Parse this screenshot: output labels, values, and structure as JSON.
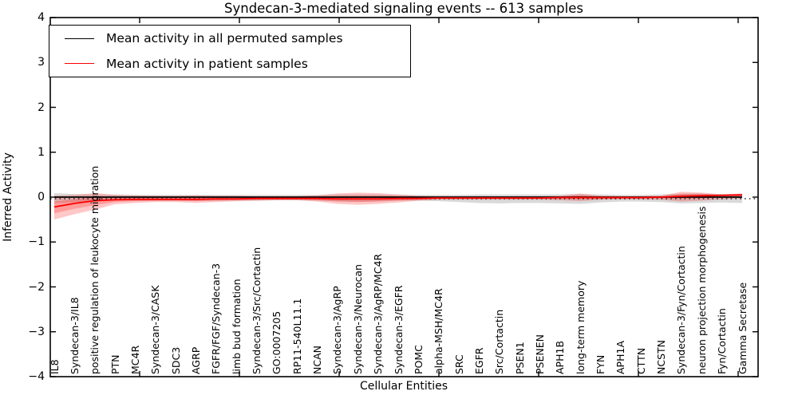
{
  "chart": {
    "title": "Syndecan-3-mediated signaling events -- 613 samples",
    "legend": [
      {
        "label": "Mean activity in all permuted samples",
        "color": "#000000"
      },
      {
        "label": "Mean activity in patient samples",
        "color": "#ff0000"
      }
    ]
  },
  "chart_data": {
    "type": "line",
    "title": "Syndecan-3-mediated signaling events -- 613 samples",
    "xlabel": "Cellular Entities",
    "ylabel": "Inferred Activity",
    "ylim": [
      -4,
      4
    ],
    "yticks": [
      4,
      3,
      2,
      1,
      0,
      -1,
      -2,
      -3,
      -4
    ],
    "ytick_labels": [
      "4",
      "3",
      "2",
      "1",
      "0",
      "−1",
      "−2",
      "−3",
      "−4"
    ],
    "grid": false,
    "legend_position": "upper left",
    "zero_line": 0,
    "categories": [
      "IL8",
      "Syndecan-3/IL8",
      "positive regulation of leukocyte migration",
      "PTN",
      "MC4R",
      "Syndecan-3/CASK",
      "SDC3",
      "AGRP",
      "FGFR/FGF/Syndecan-3",
      "limb bud formation",
      "Syndecan-3/Src/Cortactin",
      "GO:0007205",
      "RP11-540L11.1",
      "NCAN",
      "Syndecan-3/AgRP",
      "Syndecan-3/Neurocan",
      "Syndecan-3/AgRP/MC4R",
      "Syndecan-3/EGFR",
      "POMC",
      "alpha-MSH/MC4R",
      "SRC",
      "EGFR",
      "Src/Cortactin",
      "PSEN1",
      "PSENEN",
      "APH1B",
      "long-term memory",
      "FYN",
      "APH1A",
      "CTTN",
      "NCSTN",
      "Syndecan-3/Fyn/Cortactin",
      "neuron projection morphogenesis",
      "Fyn/Cortactin",
      "Gamma Secretase"
    ],
    "series": [
      {
        "name": "Mean activity in all permuted samples",
        "color": "#000000",
        "band_color": "rgba(0,0,0,0.15)",
        "values": [
          0,
          0,
          0,
          0,
          0,
          0,
          0,
          0,
          0,
          0,
          0,
          0,
          0,
          0,
          0,
          0,
          0,
          0,
          0,
          0,
          0,
          0,
          0,
          0,
          0,
          0,
          0,
          0,
          0,
          0,
          0,
          0,
          0,
          0,
          0
        ],
        "band_upper": [
          0.09,
          0.07,
          0.06,
          0.06,
          0.05,
          0.05,
          0.05,
          0.05,
          0.05,
          0.05,
          0.05,
          0.05,
          0.05,
          0.05,
          0.06,
          0.06,
          0.06,
          0.05,
          0.05,
          0.05,
          0.05,
          0.06,
          0.06,
          0.06,
          0.06,
          0.06,
          0.07,
          0.06,
          0.05,
          0.05,
          0.06,
          0.08,
          0.08,
          0.07,
          0.07
        ],
        "band_lower": [
          -0.13,
          -0.11,
          -0.09,
          -0.08,
          -0.08,
          -0.08,
          -0.08,
          -0.08,
          -0.08,
          -0.08,
          -0.08,
          -0.07,
          -0.07,
          -0.08,
          -0.09,
          -0.1,
          -0.09,
          -0.08,
          -0.08,
          -0.09,
          -0.11,
          -0.13,
          -0.14,
          -0.13,
          -0.13,
          -0.14,
          -0.15,
          -0.12,
          -0.1,
          -0.1,
          -0.11,
          -0.14,
          -0.13,
          -0.12,
          -0.13
        ]
      },
      {
        "name": "Mean activity in patient samples",
        "color": "#ff0000",
        "band_color": "rgba(255,0,0,0.22)",
        "values": [
          -0.22,
          -0.14,
          -0.08,
          -0.06,
          -0.05,
          -0.05,
          -0.05,
          -0.05,
          -0.04,
          -0.04,
          -0.03,
          -0.03,
          -0.03,
          -0.03,
          -0.04,
          -0.04,
          -0.04,
          -0.03,
          -0.03,
          -0.02,
          -0.02,
          -0.02,
          -0.02,
          -0.02,
          -0.02,
          -0.01,
          -0.01,
          -0.01,
          -0.01,
          -0.01,
          0.0,
          0.02,
          0.03,
          0.04,
          0.05
        ],
        "band_upper": [
          0.03,
          0.05,
          0.09,
          0.05,
          0.04,
          0.03,
          0.03,
          0.04,
          0.03,
          0.03,
          0.02,
          0.02,
          0.02,
          0.04,
          0.08,
          0.1,
          0.09,
          0.06,
          0.03,
          0.02,
          0.02,
          0.02,
          0.02,
          0.02,
          0.02,
          0.03,
          0.08,
          0.03,
          0.02,
          0.02,
          0.03,
          0.12,
          0.1,
          0.06,
          0.08
        ],
        "band_lower": [
          -0.5,
          -0.38,
          -0.28,
          -0.16,
          -0.13,
          -0.11,
          -0.11,
          -0.13,
          -0.11,
          -0.09,
          -0.08,
          -0.07,
          -0.07,
          -0.1,
          -0.15,
          -0.17,
          -0.15,
          -0.12,
          -0.08,
          -0.06,
          -0.06,
          -0.06,
          -0.06,
          -0.06,
          -0.06,
          -0.07,
          -0.09,
          -0.06,
          -0.05,
          -0.05,
          -0.06,
          -0.1,
          -0.08,
          -0.05,
          -0.03
        ],
        "band_inner_upper": [
          -0.1,
          -0.05,
          0.01,
          0.0,
          -0.01,
          -0.01,
          -0.01,
          -0.01,
          -0.01,
          -0.01,
          -0.01,
          -0.01,
          -0.01,
          0.01,
          0.02,
          0.03,
          0.03,
          0.02,
          0.0,
          0.0,
          0.0,
          0.0,
          0.0,
          0.0,
          0.0,
          0.01,
          0.04,
          0.01,
          0.01,
          0.01,
          0.02,
          0.07,
          0.07,
          0.05,
          0.07
        ],
        "band_inner_lower": [
          -0.36,
          -0.26,
          -0.18,
          -0.11,
          -0.09,
          -0.08,
          -0.08,
          -0.09,
          -0.08,
          -0.07,
          -0.06,
          -0.05,
          -0.05,
          -0.07,
          -0.1,
          -0.11,
          -0.1,
          -0.08,
          -0.06,
          -0.04,
          -0.04,
          -0.04,
          -0.04,
          -0.04,
          -0.04,
          -0.04,
          -0.05,
          -0.04,
          -0.03,
          -0.03,
          -0.03,
          -0.04,
          -0.03,
          -0.01,
          0.01
        ]
      }
    ]
  }
}
